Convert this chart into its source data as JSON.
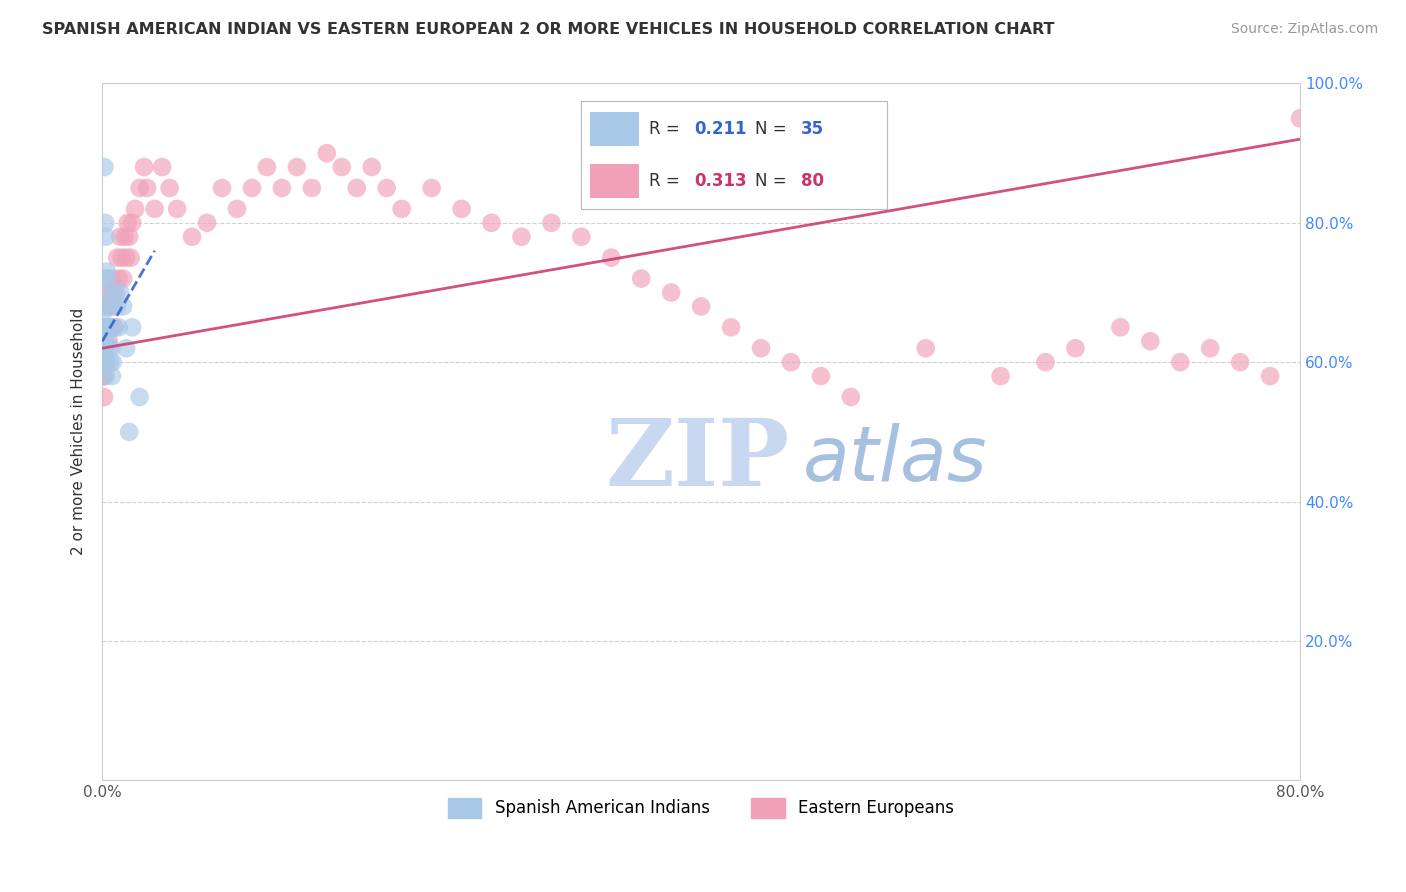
{
  "title": "SPANISH AMERICAN INDIAN VS EASTERN EUROPEAN 2 OR MORE VEHICLES IN HOUSEHOLD CORRELATION CHART",
  "source": "Source: ZipAtlas.com",
  "ylabel": "2 or more Vehicles in Household",
  "xmin": 0.0,
  "xmax": 80.0,
  "ymin": 0.0,
  "ymax": 100.0,
  "legend_bottom_blue": "Spanish American Indians",
  "legend_bottom_pink": "Eastern Europeans",
  "blue_color": "#a8c8e8",
  "pink_color": "#f0a0b8",
  "blue_line_color": "#3366cc",
  "pink_line_color": "#cc3366",
  "watermark_zip": "ZIP",
  "watermark_atlas": "atlas",
  "watermark_color_zip": "#c8d8f0",
  "watermark_color_atlas": "#a8c0e0",
  "blue_r": 0.211,
  "blue_n": 35,
  "pink_r": 0.313,
  "pink_n": 80,
  "tick_color": "#4488ff",
  "blue_scatter_x": [
    0.05,
    0.08,
    0.1,
    0.12,
    0.14,
    0.16,
    0.18,
    0.2,
    0.22,
    0.25,
    0.28,
    0.3,
    0.35,
    0.4,
    0.45,
    0.5,
    0.55,
    0.6,
    0.65,
    0.7,
    0.8,
    0.9,
    1.0,
    1.1,
    1.2,
    1.4,
    1.6,
    1.8,
    2.0,
    2.5,
    0.15,
    0.2,
    0.25,
    0.3,
    0.35
  ],
  "blue_scatter_y": [
    67,
    72,
    68,
    65,
    70,
    63,
    60,
    58,
    62,
    65,
    63,
    60,
    65,
    68,
    62,
    65,
    60,
    62,
    58,
    60,
    65,
    70,
    68,
    65,
    70,
    68,
    62,
    50,
    65,
    55,
    88,
    80,
    78,
    73,
    72
  ],
  "pink_scatter_x": [
    0.05,
    0.08,
    0.1,
    0.12,
    0.15,
    0.18,
    0.2,
    0.25,
    0.3,
    0.35,
    0.4,
    0.45,
    0.5,
    0.55,
    0.6,
    0.65,
    0.7,
    0.75,
    0.8,
    0.9,
    1.0,
    1.1,
    1.2,
    1.3,
    1.4,
    1.5,
    1.6,
    1.7,
    1.8,
    1.9,
    2.0,
    2.2,
    2.5,
    2.8,
    3.0,
    3.5,
    4.0,
    4.5,
    5.0,
    6.0,
    7.0,
    8.0,
    9.0,
    10.0,
    11.0,
    12.0,
    13.0,
    14.0,
    15.0,
    16.0,
    17.0,
    18.0,
    19.0,
    20.0,
    22.0,
    24.0,
    26.0,
    28.0,
    30.0,
    32.0,
    34.0,
    36.0,
    38.0,
    40.0,
    42.0,
    44.0,
    46.0,
    48.0,
    50.0,
    55.0,
    60.0,
    63.0,
    65.0,
    68.0,
    70.0,
    72.0,
    74.0,
    76.0,
    78.0,
    80.0
  ],
  "pink_scatter_y": [
    58,
    62,
    65,
    55,
    60,
    58,
    62,
    65,
    60,
    68,
    65,
    63,
    70,
    68,
    65,
    72,
    70,
    68,
    65,
    70,
    75,
    72,
    78,
    75,
    72,
    78,
    75,
    80,
    78,
    75,
    80,
    82,
    85,
    88,
    85,
    82,
    88,
    85,
    82,
    78,
    80,
    85,
    82,
    85,
    88,
    85,
    88,
    85,
    90,
    88,
    85,
    88,
    85,
    82,
    85,
    82,
    80,
    78,
    80,
    78,
    75,
    72,
    70,
    68,
    65,
    62,
    60,
    58,
    55,
    62,
    58,
    60,
    62,
    65,
    63,
    60,
    62,
    60,
    58,
    95
  ],
  "blue_line_x0": 0.0,
  "blue_line_x1": 3.5,
  "blue_line_y0": 63.0,
  "blue_line_y1": 76.0,
  "pink_line_x0": 0.0,
  "pink_line_x1": 80.0,
  "pink_line_y0": 62.0,
  "pink_line_y1": 92.0
}
